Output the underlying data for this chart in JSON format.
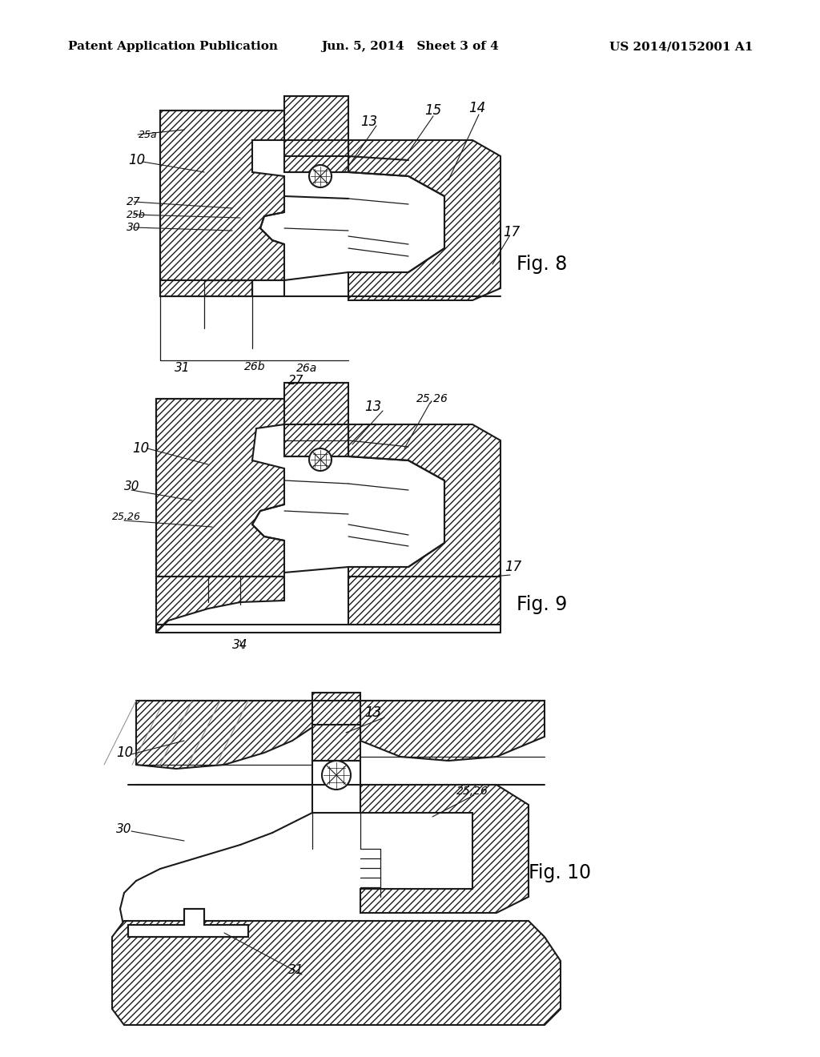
{
  "background_color": "#ffffff",
  "header_left": "Patent Application Publication",
  "header_center": "Jun. 5, 2014   Sheet 3 of 4",
  "header_right": "US 2014/0152001 A1",
  "header_fontsize": 11,
  "line_color": "#1a1a1a",
  "hatch_density": "///",
  "fig8_label": "Fig. 8",
  "fig9_label": "Fig. 9",
  "fig10_label": "Fig. 10"
}
